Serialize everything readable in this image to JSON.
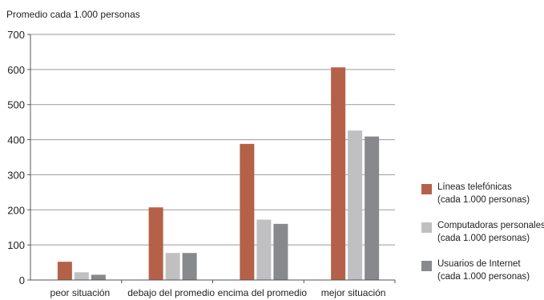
{
  "chart_data": {
    "type": "bar",
    "title": "Promedio cada 1.000 personas",
    "categories": [
      "peor situación",
      "debajo del promedio",
      "encima del promedio",
      "mejor situación"
    ],
    "series": [
      {
        "name": "Líneas telefónicas",
        "sub": "(cada 1.000 personas)",
        "color": "#b5614a",
        "values": [
          52,
          207,
          388,
          606
        ]
      },
      {
        "name": "Computadoras personales",
        "sub": "(cada 1.000 personas)",
        "color": "#c0c0c2",
        "values": [
          22,
          77,
          172,
          426
        ]
      },
      {
        "name": "Usuarios de Internet",
        "sub": "(cada 1.000 personas)",
        "color": "#88898c",
        "values": [
          15,
          77,
          160,
          409
        ]
      }
    ],
    "ylim": [
      0,
      700
    ],
    "yticks": [
      0,
      100,
      200,
      300,
      400,
      500,
      600,
      700
    ],
    "grid": true,
    "legend_position": "right"
  }
}
